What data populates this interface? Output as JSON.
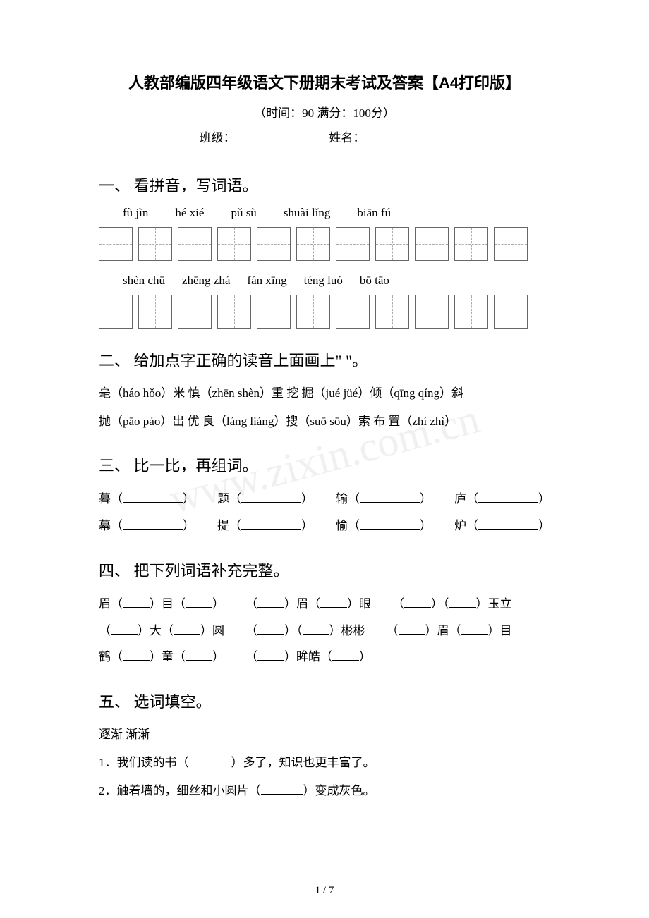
{
  "watermark": "www.zixin.com.cn",
  "title": "人教部编版四年级语文下册期末考试及答案【A4打印版】",
  "subtitle": "（时间：90   满分：100分）",
  "class_label": "班级：",
  "name_label": "姓名：",
  "section1": {
    "title": "一、 看拼音，写词语。",
    "row1": [
      "fù jìn",
      "hé xié",
      "pǔ sù",
      "shuài lǐng",
      "biān fú"
    ],
    "row2": [
      "shèn chū",
      "zhēng zhá",
      "fán xīng",
      "téng luó",
      "bō tāo"
    ]
  },
  "section2": {
    "title": "二、 给加点字正确的读音上面画上\"      \"。",
    "line1": "毫（háo hǒo）米 慎（zhēn shèn）重 挖 掘（jué jüé）倾（qīng qíng）斜",
    "line2": "抛（pāo páo）出 优 良（láng liáng）搜（suō sōu）索 布 置（zhí zhì）"
  },
  "section3": {
    "title": "三、 比一比，再组词。",
    "pairs": [
      [
        "暮",
        "题",
        "输",
        "庐"
      ],
      [
        "幕",
        "提",
        "愉",
        "炉"
      ]
    ]
  },
  "section4": {
    "title": "四、 把下列词语补充完整。",
    "items": [
      [
        "眉（",
        "）目（",
        "）"
      ],
      [
        "（",
        "）眉（",
        "）眼"
      ],
      [
        "（",
        "）（",
        "）玉立"
      ],
      [
        "（",
        "）大（",
        "）圆"
      ],
      [
        "（",
        "）（",
        "）彬彬"
      ],
      [
        "（",
        "）眉（",
        "）目"
      ],
      [
        "鹤（",
        "）童（",
        "）"
      ],
      [
        "（",
        "）眸皓（",
        "）"
      ]
    ]
  },
  "section5": {
    "title": "五、 选词填空。",
    "words": "逐渐       渐渐",
    "q1_a": "1．我们读的书（",
    "q1_b": "）多了，知识也更丰富了。",
    "q2_a": "2．触着墙的，细丝和小圆片（",
    "q2_b": "）变成灰色。"
  },
  "page": "1 / 7"
}
